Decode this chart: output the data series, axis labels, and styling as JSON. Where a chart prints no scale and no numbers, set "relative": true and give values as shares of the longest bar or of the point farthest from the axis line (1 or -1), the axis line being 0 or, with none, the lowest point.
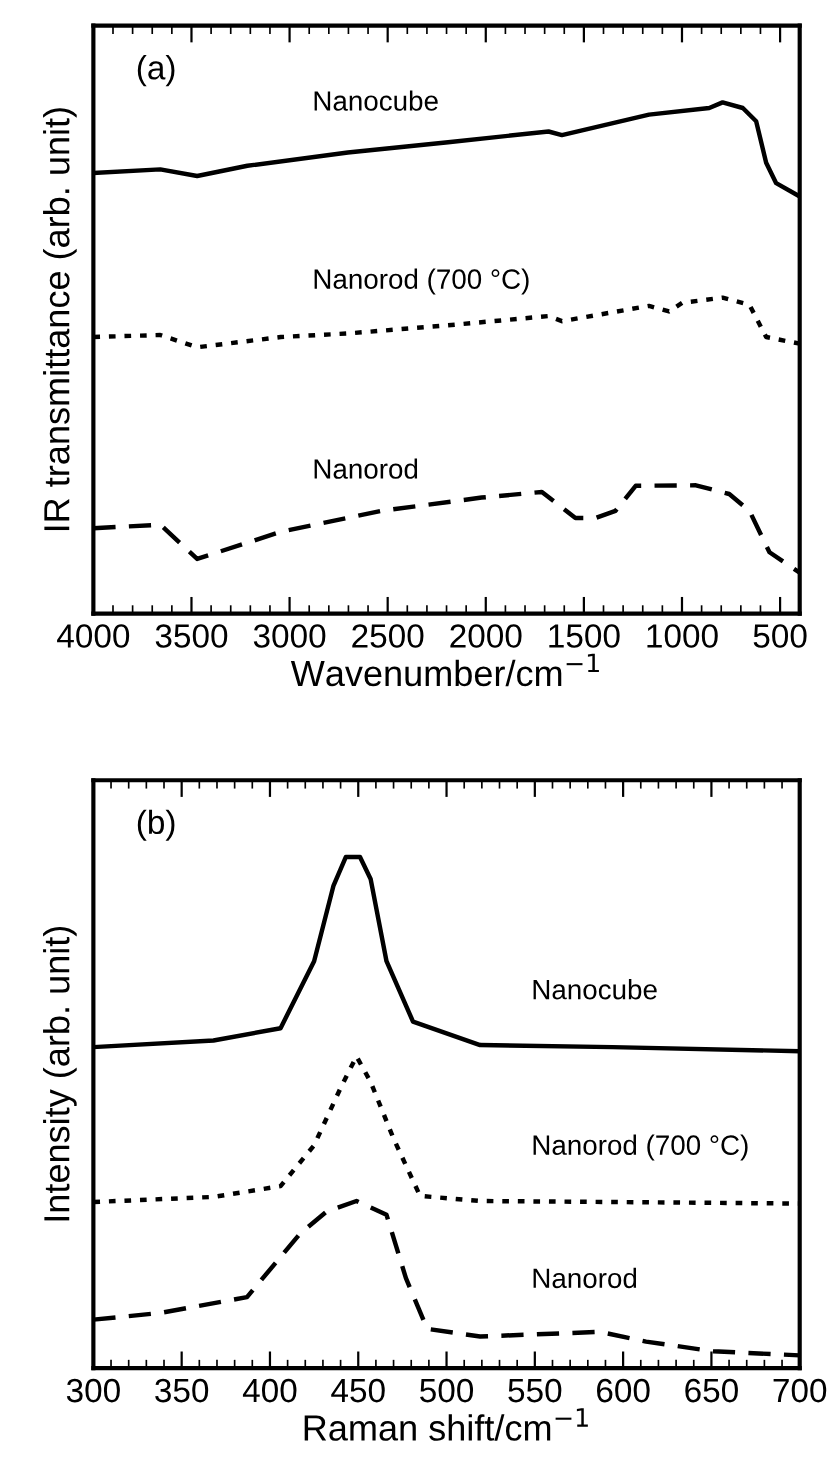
{
  "chart_data": [
    {
      "type": "line",
      "relative": true,
      "xlabel": "Wavenumber/cm$^{−1}$",
      "ylabel": "IR transmittance (arb. unit)",
      "annotations": [
        "(a)"
      ],
      "xlim": [
        4000,
        400
      ],
      "xticks": [
        4000,
        3500,
        3000,
        2500,
        2000,
        1500,
        1000,
        500
      ],
      "grid": false,
      "legend": false,
      "series": [
        {
          "name": "Nanocube",
          "color": "#000000",
          "line_style": "solid",
          "x": [
            4000,
            3659,
            3471,
            3215,
            2703,
            2192,
            1680,
            1612,
            1168,
            861,
            793,
            690,
            622,
            571,
            520,
            400
          ],
          "values": [
            0.862,
            0.869,
            0.856,
            0.876,
            0.902,
            0.922,
            0.943,
            0.936,
            0.976,
            0.989,
            1.0,
            0.989,
            0.963,
            0.882,
            0.842,
            0.816
          ]
        },
        {
          "name": "Nanorod (700 °C)",
          "color": "#000000",
          "line_style": "dotted",
          "x": [
            4000,
            3659,
            3471,
            3045,
            2703,
            2192,
            1680,
            1612,
            1168,
            1066,
            998,
            793,
            656,
            571,
            400
          ],
          "values": [
            0.541,
            0.545,
            0.521,
            0.541,
            0.548,
            0.564,
            0.582,
            0.572,
            0.602,
            0.591,
            0.608,
            0.618,
            0.604,
            0.541,
            0.528
          ]
        },
        {
          "name": "Nanorod",
          "color": "#000000",
          "line_style": "dashed",
          "x": [
            4000,
            3659,
            3471,
            3045,
            2533,
            2021,
            1714,
            1543,
            1441,
            1339,
            1236,
            929,
            759,
            656,
            554,
            400
          ],
          "values": [
            0.167,
            0.174,
            0.107,
            0.16,
            0.201,
            0.227,
            0.238,
            0.187,
            0.187,
            0.201,
            0.25,
            0.251,
            0.234,
            0.201,
            0.12,
            0.08
          ]
        }
      ]
    },
    {
      "type": "line",
      "relative": true,
      "xlabel": "Raman shift/cm$^{−1}$",
      "ylabel": "Intensity (arb. unit)",
      "annotations": [
        "(b)"
      ],
      "xlim": [
        300,
        700
      ],
      "xticks": [
        300,
        350,
        400,
        450,
        500,
        550,
        600,
        650,
        700
      ],
      "grid": false,
      "legend": false,
      "series": [
        {
          "name": "Nanocube",
          "color": "#000000",
          "line_style": "solid",
          "x": [
            300,
            368,
            406,
            425,
            436,
            443,
            451,
            457,
            466,
            481,
            519,
            594,
            700
          ],
          "values": [
            0.628,
            0.641,
            0.665,
            0.796,
            0.944,
            1.0,
            1.0,
            0.957,
            0.796,
            0.678,
            0.632,
            0.628,
            0.62
          ]
        },
        {
          "name": "Nanorod (700 °C)",
          "color": "#000000",
          "line_style": "dotted",
          "x": [
            300,
            368,
            406,
            425,
            440,
            449,
            457,
            470,
            485,
            519,
            594,
            700
          ],
          "values": [
            0.325,
            0.335,
            0.356,
            0.436,
            0.548,
            0.61,
            0.56,
            0.449,
            0.337,
            0.327,
            0.325,
            0.322
          ]
        },
        {
          "name": "Nanorod",
          "color": "#000000",
          "line_style": "dashed",
          "x": [
            300,
            338,
            387,
            417,
            432,
            449,
            466,
            477,
            489,
            519,
            587,
            613,
            651,
            700
          ],
          "values": [
            0.095,
            0.108,
            0.139,
            0.263,
            0.306,
            0.327,
            0.3,
            0.176,
            0.077,
            0.062,
            0.071,
            0.052,
            0.033,
            0.025
          ]
        }
      ]
    }
  ]
}
